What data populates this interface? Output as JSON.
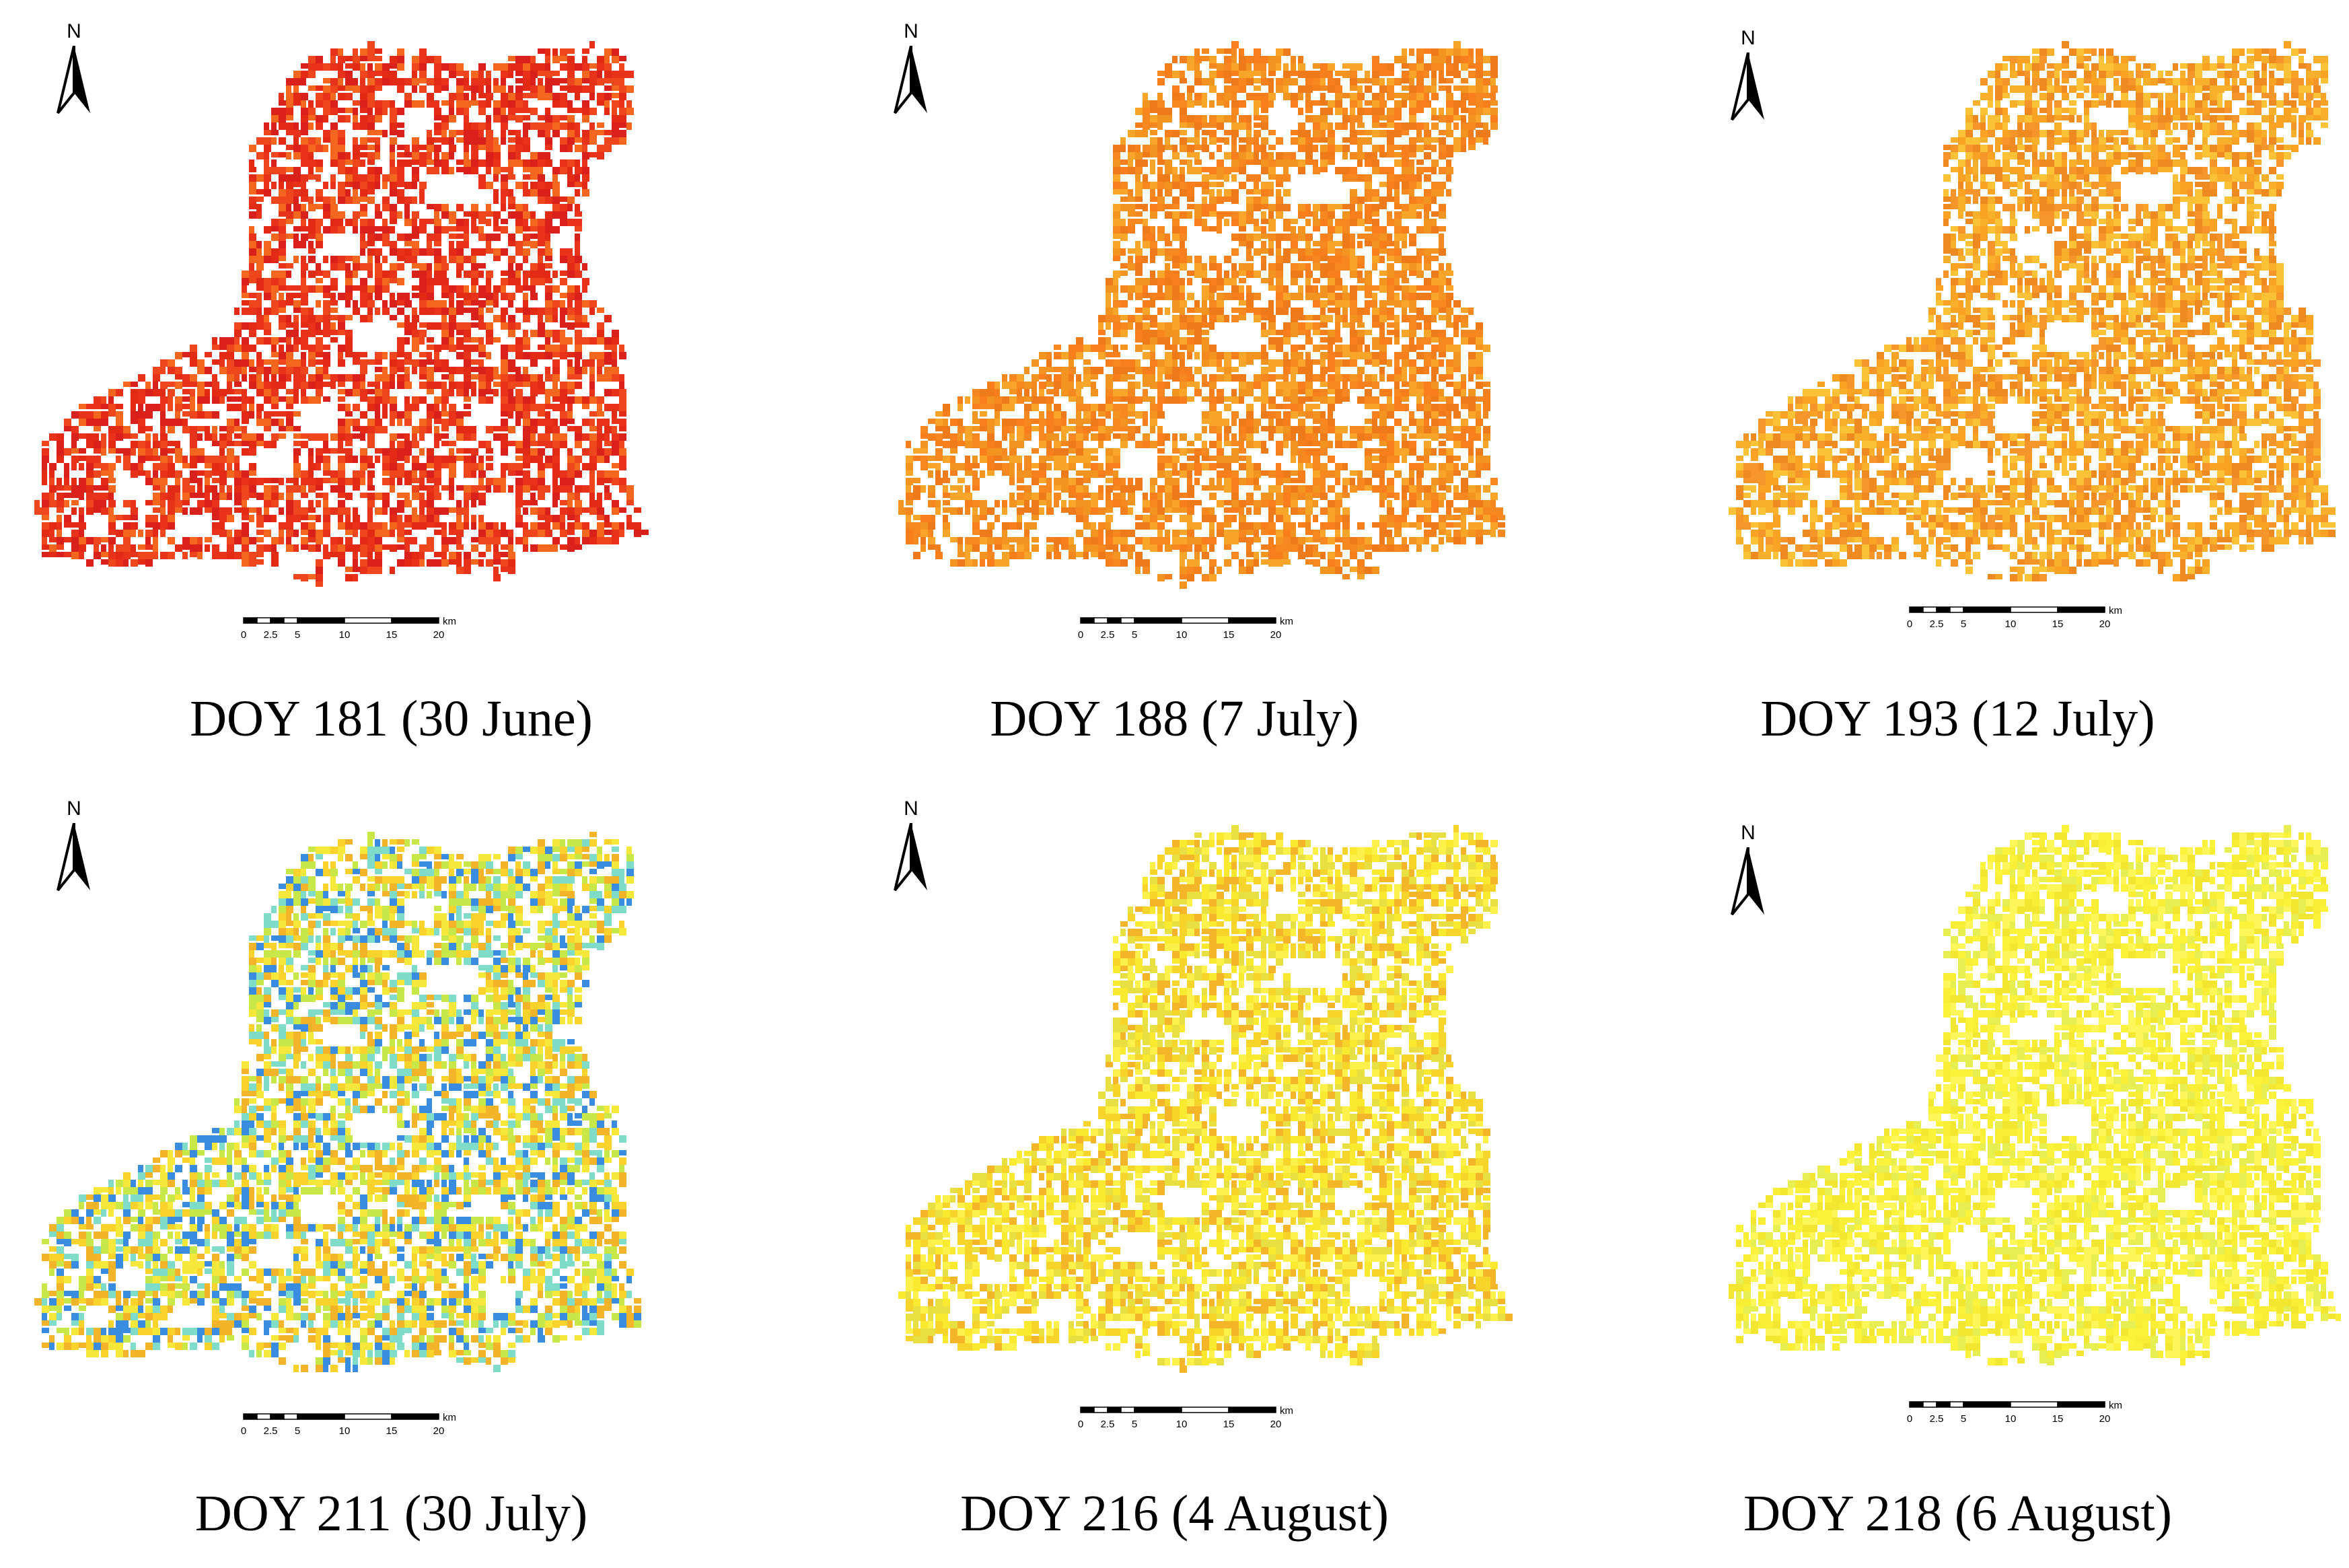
{
  "panels": [
    {
      "label": "DOY 181 (30 June)",
      "color_ramp": [
        "#e8321a",
        "#f0461e",
        "#e22a14",
        "#f5661f",
        "#d9201a"
      ]
    },
    {
      "label": "DOY 188 (7 July)",
      "color_ramp": [
        "#f7881f",
        "#f39421",
        "#f97f1c",
        "#f8a52a",
        "#ef7a1a"
      ]
    },
    {
      "label": "DOY 193 (12 July)",
      "color_ramp": [
        "#f9a224",
        "#f8b02c",
        "#f6952a",
        "#fbc237",
        "#ee8a1f"
      ]
    },
    {
      "label": "DOY 211 (30 July)",
      "color_ramp": [
        "#f6e83a",
        "#c8e84a",
        "#f9d22c",
        "#7fdcc8",
        "#f3b42a",
        "#3a8ce0"
      ]
    },
    {
      "label": "DOY 216 (4 August)",
      "color_ramp": [
        "#f9ea2f",
        "#f6d42a",
        "#fbf14a",
        "#e8e043",
        "#f4b628"
      ]
    },
    {
      "label": "DOY 218 (6 August)",
      "color_ramp": [
        "#fbf23c",
        "#f7ee35",
        "#fdf65a",
        "#f3e630",
        "#e6ee52"
      ]
    }
  ],
  "north_label": "N",
  "scale": {
    "ticks": [
      "0",
      "2.5",
      "5",
      "10",
      "15",
      "20"
    ],
    "unit": "km"
  }
}
